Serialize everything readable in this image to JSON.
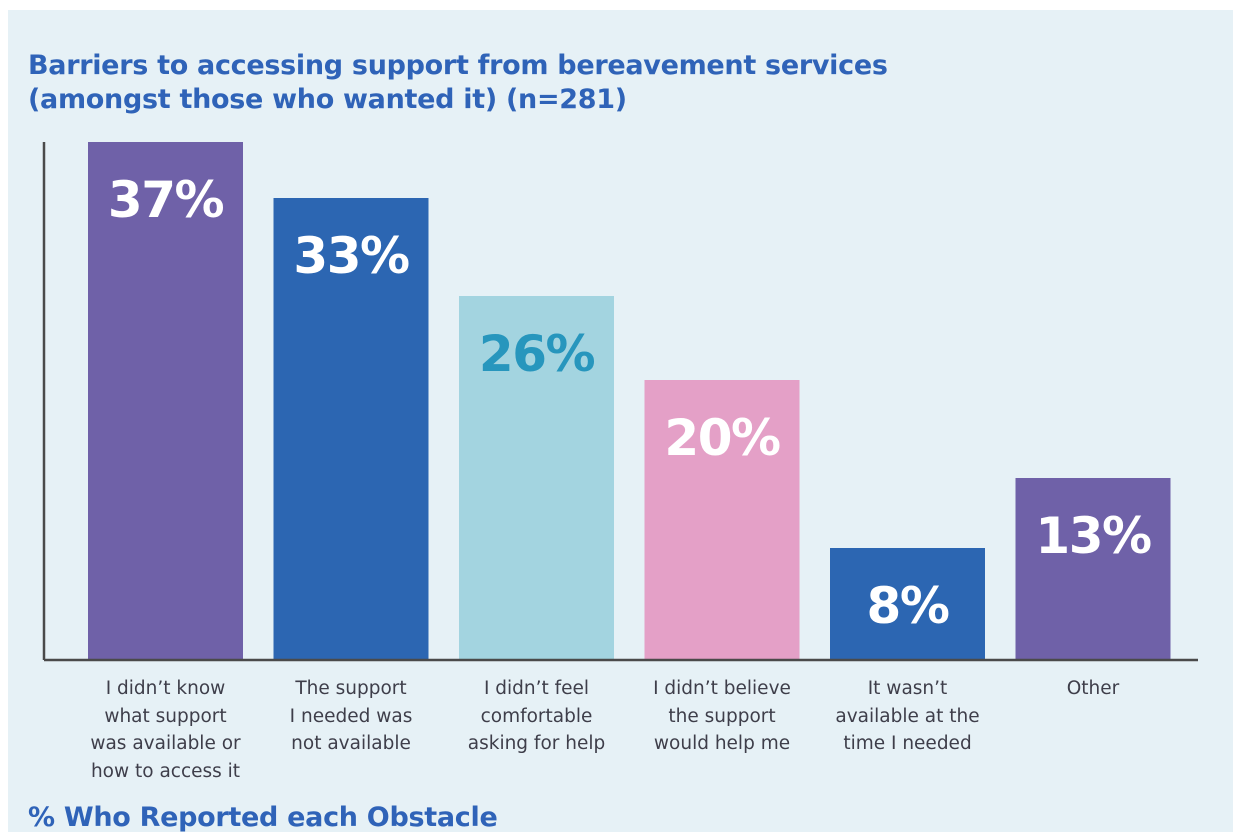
{
  "colors": {
    "background": "#e6f1f6",
    "title": "#2f63b8",
    "axis": "#4a4a4a"
  },
  "chart_data": {
    "type": "bar",
    "title": [
      "Barriers to accessing support from bereavement services",
      "(amongst those who wanted it) (n=281)"
    ],
    "footer_label": "% Who Reported each Obstacle",
    "categories": [
      [
        "I didn’t know",
        "what support",
        "was available or",
        "how to access it"
      ],
      [
        "The support",
        "I needed was",
        "not available"
      ],
      [
        "I didn’t feel",
        "comfortable",
        "asking for help"
      ],
      [
        "I didn’t believe",
        "the support",
        "would help me"
      ],
      [
        "It wasn’t",
        "available at the",
        "time I needed"
      ],
      [
        "Other"
      ]
    ],
    "values": [
      37,
      33,
      26,
      20,
      8,
      13
    ],
    "value_labels": [
      "37%",
      "33%",
      "26%",
      "20%",
      "8%",
      "13%"
    ],
    "bar_colors": [
      "#6f61a8",
      "#2c66b2",
      "#a3d4e0",
      "#e4a0c7",
      "#2c66b2",
      "#6f61a8"
    ],
    "label_colors": [
      "#ffffff",
      "#ffffff",
      "#2796bd",
      "#ffffff",
      "#ffffff",
      "#ffffff"
    ],
    "ylim": [
      0,
      37
    ],
    "grid": false,
    "legend": "none"
  }
}
